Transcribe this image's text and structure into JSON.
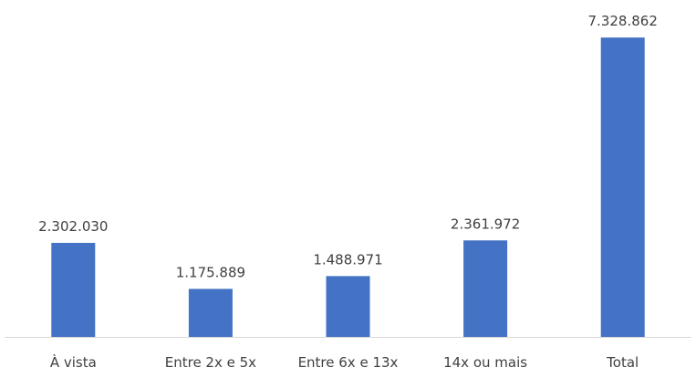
{
  "chart_data": {
    "type": "bar",
    "categories": [
      "À vista",
      "Entre 2x e 5x",
      "Entre 6x e 13x",
      "14x ou mais",
      "Total"
    ],
    "values": [
      2302030,
      1175889,
      1488971,
      2361972,
      7328862
    ],
    "data_labels": [
      "2.302.030",
      "1.175.889",
      "1.488.971",
      "2.361.972",
      "7.328.862"
    ],
    "title": "",
    "xlabel": "",
    "ylabel": "",
    "ylim": [
      0,
      7800000
    ],
    "grid": false,
    "legend": "none",
    "bar_color": "#4472c4"
  }
}
